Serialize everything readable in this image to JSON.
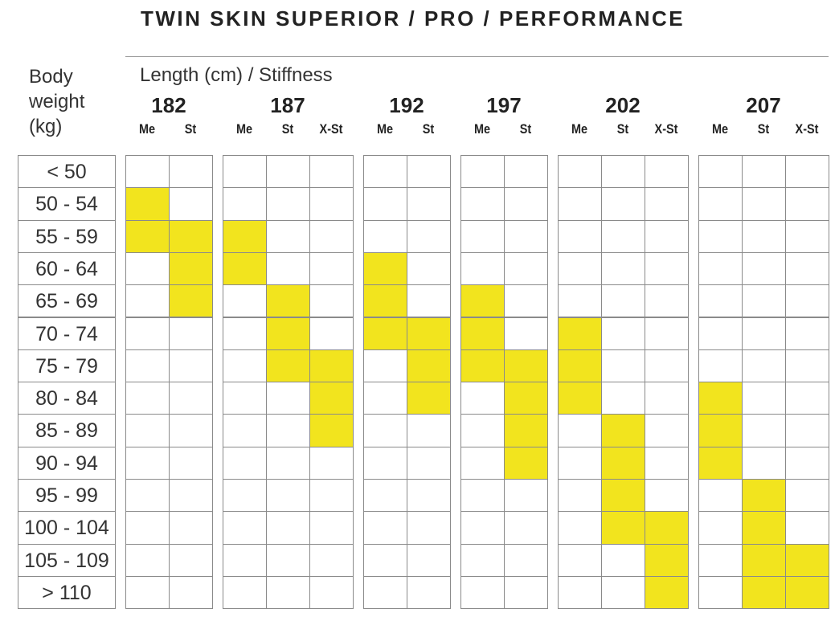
{
  "title": "TWIN SKIN SUPERIOR / PRO / PERFORMANCE",
  "row_header": "Body weight (kg)",
  "column_header": "Length (cm) / Stiffness",
  "groups": [
    {
      "length": "182",
      "stiffness": [
        "Me",
        "St"
      ]
    },
    {
      "length": "187",
      "stiffness": [
        "Me",
        "St",
        "X-St"
      ]
    },
    {
      "length": "192",
      "stiffness": [
        "Me",
        "St"
      ]
    },
    {
      "length": "197",
      "stiffness": [
        "Me",
        "St"
      ]
    },
    {
      "length": "202",
      "stiffness": [
        "Me",
        "St",
        "X-St"
      ]
    },
    {
      "length": "207",
      "stiffness": [
        "Me",
        "St",
        "X-St"
      ]
    }
  ],
  "rows": [
    {
      "label": "< 50",
      "cells": [
        false,
        false,
        false,
        false,
        false,
        false,
        false,
        false,
        false,
        false,
        false,
        false,
        false,
        false,
        false
      ]
    },
    {
      "label": "50 - 54",
      "cells": [
        true,
        false,
        false,
        false,
        false,
        false,
        false,
        false,
        false,
        false,
        false,
        false,
        false,
        false,
        false
      ]
    },
    {
      "label": "55 - 59",
      "cells": [
        true,
        true,
        true,
        false,
        false,
        false,
        false,
        false,
        false,
        false,
        false,
        false,
        false,
        false,
        false
      ]
    },
    {
      "label": "60 - 64",
      "cells": [
        false,
        true,
        true,
        false,
        false,
        true,
        false,
        false,
        false,
        false,
        false,
        false,
        false,
        false,
        false
      ]
    },
    {
      "label": "65 - 69",
      "cells": [
        false,
        true,
        false,
        true,
        false,
        true,
        false,
        true,
        false,
        false,
        false,
        false,
        false,
        false,
        false
      ]
    },
    {
      "label": "70 - 74",
      "cells": [
        false,
        false,
        false,
        true,
        false,
        true,
        true,
        true,
        false,
        true,
        false,
        false,
        false,
        false,
        false
      ]
    },
    {
      "label": "75 - 79",
      "cells": [
        false,
        false,
        false,
        true,
        true,
        false,
        true,
        true,
        true,
        true,
        false,
        false,
        false,
        false,
        false
      ]
    },
    {
      "label": "80 - 84",
      "cells": [
        false,
        false,
        false,
        false,
        true,
        false,
        true,
        false,
        true,
        true,
        false,
        false,
        true,
        false,
        false
      ]
    },
    {
      "label": "85 - 89",
      "cells": [
        false,
        false,
        false,
        false,
        true,
        false,
        false,
        false,
        true,
        false,
        true,
        false,
        true,
        false,
        false
      ]
    },
    {
      "label": "90 - 94",
      "cells": [
        false,
        false,
        false,
        false,
        false,
        false,
        false,
        false,
        true,
        false,
        true,
        false,
        true,
        false,
        false
      ]
    },
    {
      "label": "95 - 99",
      "cells": [
        false,
        false,
        false,
        false,
        false,
        false,
        false,
        false,
        false,
        false,
        true,
        false,
        false,
        true,
        false
      ]
    },
    {
      "label": "100 - 104",
      "cells": [
        false,
        false,
        false,
        false,
        false,
        false,
        false,
        false,
        false,
        false,
        true,
        true,
        false,
        true,
        false
      ]
    },
    {
      "label": "105 - 109",
      "cells": [
        false,
        false,
        false,
        false,
        false,
        false,
        false,
        false,
        false,
        false,
        false,
        true,
        false,
        true,
        true
      ]
    },
    {
      "label": "> 110",
      "cells": [
        false,
        false,
        false,
        false,
        false,
        false,
        false,
        false,
        false,
        false,
        false,
        true,
        false,
        true,
        true
      ]
    }
  ]
}
